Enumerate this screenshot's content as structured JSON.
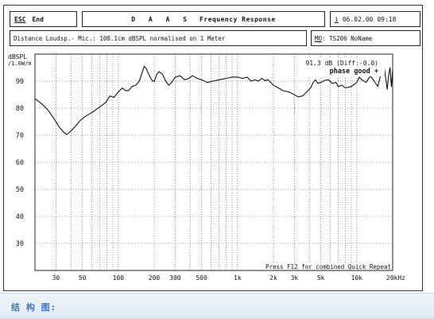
{
  "header": {
    "esc_key": "ESC",
    "esc_label": "End",
    "program_name": "D A A S",
    "title": "Frequency Response",
    "info_icon": "i",
    "date": "06.02.00",
    "time": "09:18"
  },
  "measurement": {
    "description": "Distance Loudsp.- Mic.: 108.1cm dBSPL normalised on 1 Meter",
    "model_key": "MO",
    "model_value": ": TS206 NoName"
  },
  "chart_data": {
    "type": "line",
    "ylabel": "dBSPL",
    "ylabel_unit": "/1.0W/m",
    "xscale": "log",
    "xlim": [
      20,
      20000
    ],
    "ylim": [
      20,
      100
    ],
    "grid": true,
    "y_ticks": [
      30,
      40,
      50,
      60,
      70,
      80,
      90
    ],
    "x_ticks": [
      {
        "value": 30,
        "label": "30"
      },
      {
        "value": 50,
        "label": "50"
      },
      {
        "value": 100,
        "label": "100"
      },
      {
        "value": 200,
        "label": "200"
      },
      {
        "value": 300,
        "label": "300"
      },
      {
        "value": 500,
        "label": "500"
      },
      {
        "value": 1000,
        "label": "1k"
      },
      {
        "value": 2000,
        "label": "2k"
      },
      {
        "value": 3000,
        "label": "3k"
      },
      {
        "value": 5000,
        "label": "5k"
      },
      {
        "value": 10000,
        "label": "10k"
      },
      {
        "value": 20000,
        "label": "20kHz"
      }
    ],
    "series": [
      {
        "points": [
          [
            20,
            83.5
          ],
          [
            23,
            81.5
          ],
          [
            26,
            79
          ],
          [
            29,
            76
          ],
          [
            32,
            73
          ],
          [
            35,
            71
          ],
          [
            37,
            70.3
          ],
          [
            40,
            71.5
          ],
          [
            44,
            73.5
          ],
          [
            48,
            75.5
          ],
          [
            53,
            77
          ],
          [
            58,
            78
          ],
          [
            63,
            79
          ],
          [
            70,
            80.5
          ],
          [
            78,
            82
          ],
          [
            85,
            84.5
          ],
          [
            92,
            84
          ],
          [
            100,
            86
          ],
          [
            108,
            87.5
          ],
          [
            115,
            86.5
          ],
          [
            122,
            86.5
          ],
          [
            130,
            88
          ],
          [
            140,
            88.5
          ],
          [
            150,
            90
          ],
          [
            158,
            93
          ],
          [
            165,
            95.5
          ],
          [
            172,
            94.5
          ],
          [
            180,
            92.5
          ],
          [
            190,
            90.5
          ],
          [
            200,
            89.8
          ],
          [
            210,
            92.5
          ],
          [
            220,
            93.5
          ],
          [
            235,
            92.5
          ],
          [
            250,
            90
          ],
          [
            265,
            88.5
          ],
          [
            280,
            89.5
          ],
          [
            300,
            91.5
          ],
          [
            330,
            92
          ],
          [
            360,
            90.5
          ],
          [
            390,
            91
          ],
          [
            420,
            92
          ],
          [
            460,
            91
          ],
          [
            500,
            90.5
          ],
          [
            560,
            89.5
          ],
          [
            620,
            90
          ],
          [
            700,
            90.5
          ],
          [
            800,
            91
          ],
          [
            900,
            91.5
          ],
          [
            1000,
            91.5
          ],
          [
            1100,
            91
          ],
          [
            1200,
            91.5
          ],
          [
            1300,
            90
          ],
          [
            1400,
            90.5
          ],
          [
            1500,
            90
          ],
          [
            1600,
            91
          ],
          [
            1700,
            90.2
          ],
          [
            1800,
            90.5
          ],
          [
            1900,
            89.5
          ],
          [
            2000,
            88.5
          ],
          [
            2200,
            87.5
          ],
          [
            2400,
            86.5
          ],
          [
            2700,
            86
          ],
          [
            3000,
            85
          ],
          [
            3200,
            84.2
          ],
          [
            3500,
            84.5
          ],
          [
            3800,
            86
          ],
          [
            4100,
            87.5
          ],
          [
            4300,
            89.5
          ],
          [
            4500,
            90.5
          ],
          [
            4700,
            89.2
          ],
          [
            5000,
            89.5
          ],
          [
            5400,
            90.3
          ],
          [
            5800,
            90.5
          ],
          [
            6200,
            89.2
          ],
          [
            6700,
            89.5
          ],
          [
            7000,
            88
          ],
          [
            7500,
            88.5
          ],
          [
            8000,
            87.5
          ],
          [
            9000,
            88
          ],
          [
            10000,
            89.5
          ],
          [
            10500,
            91.5
          ],
          [
            11000,
            90.5
          ],
          [
            12000,
            89.5
          ],
          [
            13000,
            92
          ],
          [
            14000,
            90
          ],
          [
            15000,
            88
          ],
          [
            16000,
            93
          ],
          [
            17000,
            95
          ],
          [
            17500,
            91
          ],
          [
            18000,
            87
          ],
          [
            18500,
            92
          ],
          [
            19000,
            95
          ],
          [
            19500,
            88
          ],
          [
            20000,
            94
          ]
        ]
      }
    ],
    "annotations": {
      "readout": "91.3 dB (Diff:-0.0)",
      "status": "phase good +",
      "hint": "Press F12 for combined Quick Repeat"
    }
  },
  "footer": {
    "label": "结 构 图:"
  },
  "colors": {
    "curve": "#111111",
    "grid": "#555555",
    "footer_text": "#3a7cc0"
  }
}
